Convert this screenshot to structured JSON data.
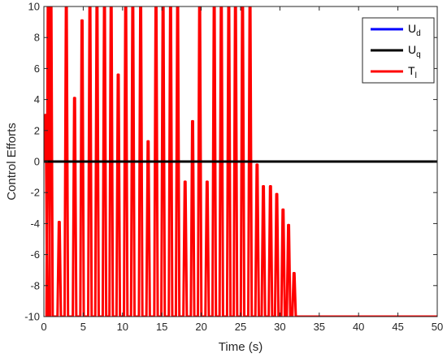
{
  "chart_data": {
    "type": "line",
    "title": "",
    "xlabel": "Time (s)",
    "ylabel": "Control Efforts",
    "xlim": [
      0,
      50
    ],
    "ylim": [
      -10,
      10
    ],
    "xticks": [
      0,
      5,
      10,
      15,
      20,
      25,
      30,
      35,
      40,
      45,
      50
    ],
    "yticks": [
      -10,
      -8,
      -6,
      -4,
      -2,
      0,
      2,
      4,
      6,
      8,
      10
    ],
    "grid": false,
    "legend_position": "top-right",
    "series": [
      {
        "name": "U_d",
        "legend_main": "U",
        "legend_sub": "d",
        "color": "#0000ff",
        "x": [
          0,
          50
        ],
        "y": [
          0,
          0
        ]
      },
      {
        "name": "U_q",
        "legend_main": "U",
        "legend_sub": "q",
        "color": "#000000",
        "x": [
          0,
          50
        ],
        "y": [
          0,
          0
        ]
      },
      {
        "name": "T_l",
        "legend_main": "T",
        "legend_sub": "l",
        "color": "#ff0000",
        "peaks": [
          [
            0.2,
            3.0
          ],
          [
            0.55,
            10
          ],
          [
            0.9,
            10
          ],
          [
            1.95,
            -3.9
          ],
          [
            2.85,
            10
          ],
          [
            3.9,
            4.1
          ],
          [
            4.85,
            9.1
          ],
          [
            5.85,
            10
          ],
          [
            6.75,
            10
          ],
          [
            7.7,
            10
          ],
          [
            8.55,
            10
          ],
          [
            9.45,
            5.6
          ],
          [
            10.4,
            10
          ],
          [
            11.3,
            10
          ],
          [
            12.3,
            10
          ],
          [
            13.25,
            1.3
          ],
          [
            14.25,
            10
          ],
          [
            15.15,
            10
          ],
          [
            16.1,
            10
          ],
          [
            17.0,
            10
          ],
          [
            17.95,
            -1.3
          ],
          [
            18.9,
            2.6
          ],
          [
            19.8,
            10
          ],
          [
            20.75,
            -1.3
          ],
          [
            21.65,
            10
          ],
          [
            22.55,
            10
          ],
          [
            23.5,
            10
          ],
          [
            24.35,
            10
          ],
          [
            25.25,
            10
          ],
          [
            26.2,
            10
          ],
          [
            27.1,
            -0.2
          ],
          [
            27.9,
            -1.6
          ],
          [
            28.8,
            -1.6
          ],
          [
            29.6,
            -2.1
          ],
          [
            30.4,
            -3.1
          ],
          [
            31.1,
            -4.1
          ],
          [
            31.8,
            -7.2
          ]
        ],
        "ymin": -10,
        "final_value": -10
      }
    ]
  }
}
